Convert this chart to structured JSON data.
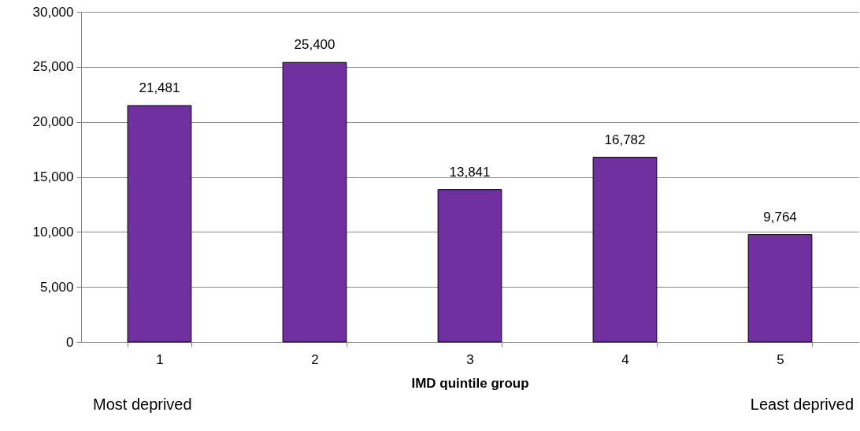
{
  "chart_data": {
    "type": "bar",
    "xlabel": "IMD quintile group",
    "categories": [
      "1",
      "2",
      "3",
      "4",
      "5"
    ],
    "values": [
      21481,
      25400,
      13841,
      16782,
      9764
    ],
    "value_labels": [
      "21,481",
      "25,400",
      "13,841",
      "16,782",
      "9,764"
    ],
    "color": "#7030a0",
    "ylim": [
      0,
      30000
    ],
    "yticks": [
      0,
      {
        "value": 5000,
        "label": "5,000"
      },
      {
        "value": 10000,
        "label": "10,000"
      },
      {
        "value": 15000,
        "label": "15,000"
      },
      {
        "value": 20000,
        "label": "20,000"
      },
      {
        "value": 25000,
        "label": "25,000"
      },
      {
        "value": 30000,
        "label": "30,000"
      }
    ],
    "grid": "y",
    "annotations": [
      "Most deprived",
      "Least deprived"
    ]
  }
}
